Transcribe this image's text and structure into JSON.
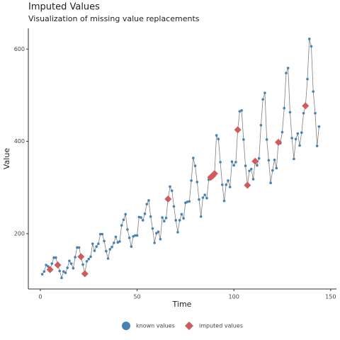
{
  "chart_data": {
    "type": "scatter-line",
    "title": "Imputed Values",
    "subtitle": "Visualization of missing value replacements",
    "x_label": "Time",
    "y_label": "Value",
    "x": [
      1,
      2,
      3,
      4,
      5,
      6,
      7,
      8,
      9,
      10,
      11,
      12,
      13,
      14,
      15,
      16,
      17,
      18,
      19,
      20,
      21,
      22,
      23,
      24,
      25,
      26,
      27,
      28,
      29,
      30,
      31,
      32,
      33,
      34,
      35,
      36,
      37,
      38,
      39,
      40,
      41,
      42,
      43,
      44,
      45,
      46,
      47,
      48,
      49,
      50,
      51,
      52,
      53,
      54,
      55,
      56,
      57,
      58,
      59,
      60,
      61,
      62,
      63,
      64,
      65,
      66,
      67,
      68,
      69,
      70,
      71,
      72,
      73,
      74,
      75,
      76,
      77,
      78,
      79,
      80,
      81,
      82,
      83,
      84,
      85,
      86,
      87,
      88,
      89,
      90,
      91,
      92,
      93,
      94,
      95,
      96,
      97,
      98,
      99,
      100,
      101,
      102,
      103,
      104,
      105,
      106,
      107,
      108,
      109,
      110,
      111,
      112,
      113,
      114,
      115,
      116,
      117,
      118,
      119,
      120,
      121,
      122,
      123,
      124,
      125,
      126,
      127,
      128,
      129,
      130,
      131,
      132,
      133,
      134,
      135,
      136,
      137,
      138,
      139,
      140,
      141,
      142,
      143,
      144
    ],
    "series": [
      {
        "name": "known values",
        "color": "#4682b4",
        "values": [
          112,
          118,
          132,
          129,
          null,
          135,
          148,
          148,
          null,
          119,
          104,
          118,
          115,
          126,
          141,
          135,
          125,
          149,
          170,
          170,
          null,
          133,
          null,
          140,
          145,
          150,
          178,
          163,
          172,
          178,
          199,
          199,
          184,
          162,
          146,
          166,
          171,
          180,
          193,
          181,
          183,
          218,
          230,
          242,
          209,
          191,
          172,
          194,
          196,
          196,
          236,
          235,
          229,
          243,
          264,
          272,
          237,
          211,
          180,
          201,
          204,
          188,
          235,
          227,
          234,
          null,
          302,
          293,
          259,
          229,
          203,
          229,
          242,
          233,
          267,
          269,
          270,
          315,
          364,
          347,
          312,
          274,
          237,
          278,
          284,
          277,
          317,
          null,
          null,
          null,
          413,
          405,
          355,
          306,
          271,
          306,
          315,
          301,
          356,
          348,
          355,
          null,
          465,
          467,
          404,
          347,
          null,
          336,
          340,
          318,
          null,
          348,
          363,
          435,
          491,
          505,
          404,
          359,
          310,
          337,
          360,
          342,
          null,
          396,
          420,
          472,
          548,
          559,
          463,
          407,
          362,
          405,
          417,
          391,
          419,
          461,
          null,
          535,
          622,
          606,
          508,
          461,
          390,
          432
        ]
      },
      {
        "name": "imputed values",
        "color": "#cd5c5c",
        "values": [
          null,
          null,
          null,
          null,
          122,
          null,
          null,
          null,
          132,
          null,
          null,
          null,
          null,
          null,
          null,
          null,
          null,
          null,
          null,
          null,
          150,
          null,
          113,
          null,
          null,
          null,
          null,
          null,
          null,
          null,
          null,
          null,
          null,
          null,
          null,
          null,
          null,
          null,
          null,
          null,
          null,
          null,
          null,
          null,
          null,
          null,
          null,
          null,
          null,
          null,
          null,
          null,
          null,
          null,
          null,
          null,
          null,
          null,
          null,
          null,
          null,
          null,
          null,
          null,
          null,
          275,
          null,
          null,
          null,
          null,
          null,
          null,
          null,
          null,
          null,
          null,
          null,
          null,
          null,
          null,
          null,
          null,
          null,
          null,
          null,
          null,
          null,
          322,
          325,
          330,
          null,
          null,
          null,
          null,
          null,
          null,
          null,
          null,
          null,
          null,
          null,
          425,
          null,
          null,
          null,
          null,
          305,
          null,
          null,
          null,
          357,
          null,
          null,
          null,
          null,
          null,
          null,
          null,
          null,
          null,
          null,
          null,
          398,
          null,
          null,
          null,
          null,
          null,
          null,
          null,
          null,
          null,
          null,
          null,
          null,
          null,
          477,
          null,
          null,
          null,
          null,
          null,
          null,
          null
        ]
      }
    ],
    "line_color": "#7f7f7f",
    "xlim": [
      -6.2,
      153
    ],
    "ylim": [
      80,
      645
    ],
    "xticks": [
      0,
      50,
      100,
      150
    ],
    "yticks": [
      200,
      400,
      600
    ],
    "legend": "bottom"
  }
}
